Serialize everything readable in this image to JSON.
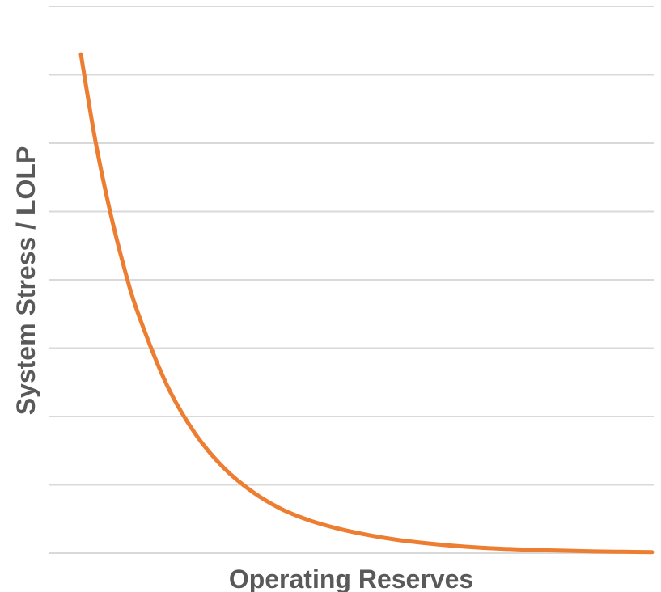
{
  "chart_data": {
    "type": "line",
    "title": "",
    "xlabel": "Operating Reserves",
    "ylabel": "System Stress / LOLP",
    "xlim": [
      0,
      10
    ],
    "ylim": [
      0,
      8
    ],
    "grid": true,
    "legend": "none",
    "tick_labels_shown": false,
    "series": [
      {
        "color": "#ED7D31",
        "x": [
          0,
          0.25,
          0.5,
          0.75,
          1,
          1.5,
          2,
          2.5,
          3,
          3.5,
          4,
          4.5,
          5,
          5.5,
          6,
          6.5,
          7,
          7.5,
          8,
          8.5,
          9,
          9.5,
          10
        ],
        "y": [
          7.3,
          6.05,
          5.04,
          4.2,
          3.51,
          2.47,
          1.75,
          1.25,
          0.9,
          0.65,
          0.48,
          0.36,
          0.27,
          0.2,
          0.15,
          0.11,
          0.08,
          0.06,
          0.045,
          0.035,
          0.025,
          0.02,
          0.015
        ]
      }
    ]
  }
}
